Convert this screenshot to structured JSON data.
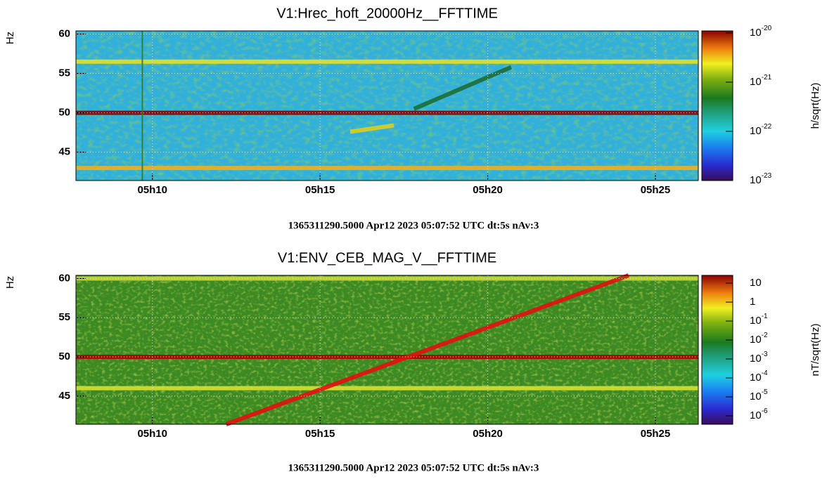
{
  "chart_data": [
    {
      "type": "spectrogram",
      "title": "V1:Hrec_hoft_20000Hz__FFTTIME",
      "ylabel": "Hz",
      "xlim": [
        7.72,
        26.28
      ],
      "xticks": [
        {
          "value": 10,
          "label": "05h10"
        },
        {
          "value": 15,
          "label": "05h15"
        },
        {
          "value": 20,
          "label": "05h20"
        },
        {
          "value": 25,
          "label": "05h25"
        }
      ],
      "ylim": [
        41.4,
        60.4
      ],
      "yticks": [
        45,
        50,
        55,
        60
      ],
      "grid": true,
      "colorbar_label": "h/sqrt(Hz)",
      "zscale": "log",
      "zlim": [
        1e-23,
        1.1e-20
      ],
      "zticks": [
        {
          "value": 1e-20,
          "label": "10",
          "exponent": "-20"
        },
        {
          "value": 1e-21,
          "label": "10",
          "exponent": "-21"
        },
        {
          "value": 1e-22,
          "label": "10",
          "exponent": "-22"
        },
        {
          "value": 1e-23,
          "label": "10",
          "exponent": "-23"
        }
      ],
      "lines": [
        {
          "x": [
            7.72,
            26.28
          ],
          "y": [
            50,
            50
          ],
          "color": "#8b0000"
        },
        {
          "x": [
            7.72,
            26.28
          ],
          "y": [
            56.5,
            56.5
          ],
          "color": "#e8e020"
        },
        {
          "x": [
            7.72,
            26.28
          ],
          "y": [
            43,
            43
          ],
          "color": "#f0b020"
        },
        {
          "x": [
            9.7,
            9.7
          ],
          "y": [
            41.4,
            60.4
          ],
          "color": "#2e7d32"
        },
        {
          "x": [
            15.9,
            17.2
          ],
          "y": [
            47.6,
            48.4
          ],
          "color": "#d8d020"
        },
        {
          "x": [
            17.8,
            20.7
          ],
          "y": [
            50.5,
            55.8
          ],
          "color": "#1b6e3a"
        }
      ],
      "footer": "1365311290.5000 Apr12 2023 05:07:52 UTC dt:5s nAv:3"
    },
    {
      "type": "spectrogram",
      "title": "V1:ENV_CEB_MAG_V__FFTTIME",
      "ylabel": "Hz",
      "xlim": [
        7.72,
        26.28
      ],
      "xticks": [
        {
          "value": 10,
          "label": "05h10"
        },
        {
          "value": 15,
          "label": "05h15"
        },
        {
          "value": 20,
          "label": "05h20"
        },
        {
          "value": 25,
          "label": "05h25"
        }
      ],
      "ylim": [
        41.4,
        60.4
      ],
      "yticks": [
        45,
        50,
        55,
        60
      ],
      "grid": true,
      "colorbar_label": "nT/sqrt(Hz)",
      "zscale": "log",
      "zlim": [
        3.6e-07,
        25.7
      ],
      "zticks": [
        10,
        1,
        {
          "value": 0.1,
          "label": "10",
          "exponent": "-1"
        },
        {
          "value": 0.01,
          "label": "10",
          "exponent": "-2"
        },
        {
          "value": 0.001,
          "label": "10",
          "exponent": "-3"
        },
        {
          "value": 0.0001,
          "label": "10",
          "exponent": "-4"
        },
        {
          "value": 1e-05,
          "label": "10",
          "exponent": "-5"
        },
        {
          "value": 1e-06,
          "label": "10",
          "exponent": "-6"
        }
      ],
      "lines": [
        {
          "x": [
            7.72,
            26.28
          ],
          "y": [
            50,
            50
          ],
          "color": "#b00000"
        },
        {
          "x": [
            7.72,
            26.28
          ],
          "y": [
            46,
            46
          ],
          "color": "#d8e030"
        },
        {
          "x": [
            7.72,
            26.28
          ],
          "y": [
            60,
            60
          ],
          "color": "#c8d830"
        },
        {
          "x": [
            12.2,
            24.2
          ],
          "y": [
            41.4,
            60.4
          ],
          "color": "#e41010"
        }
      ],
      "footer": "1365311290.5000 Apr12 2023 05:07:52 UTC dt:5s nAv:3"
    }
  ]
}
